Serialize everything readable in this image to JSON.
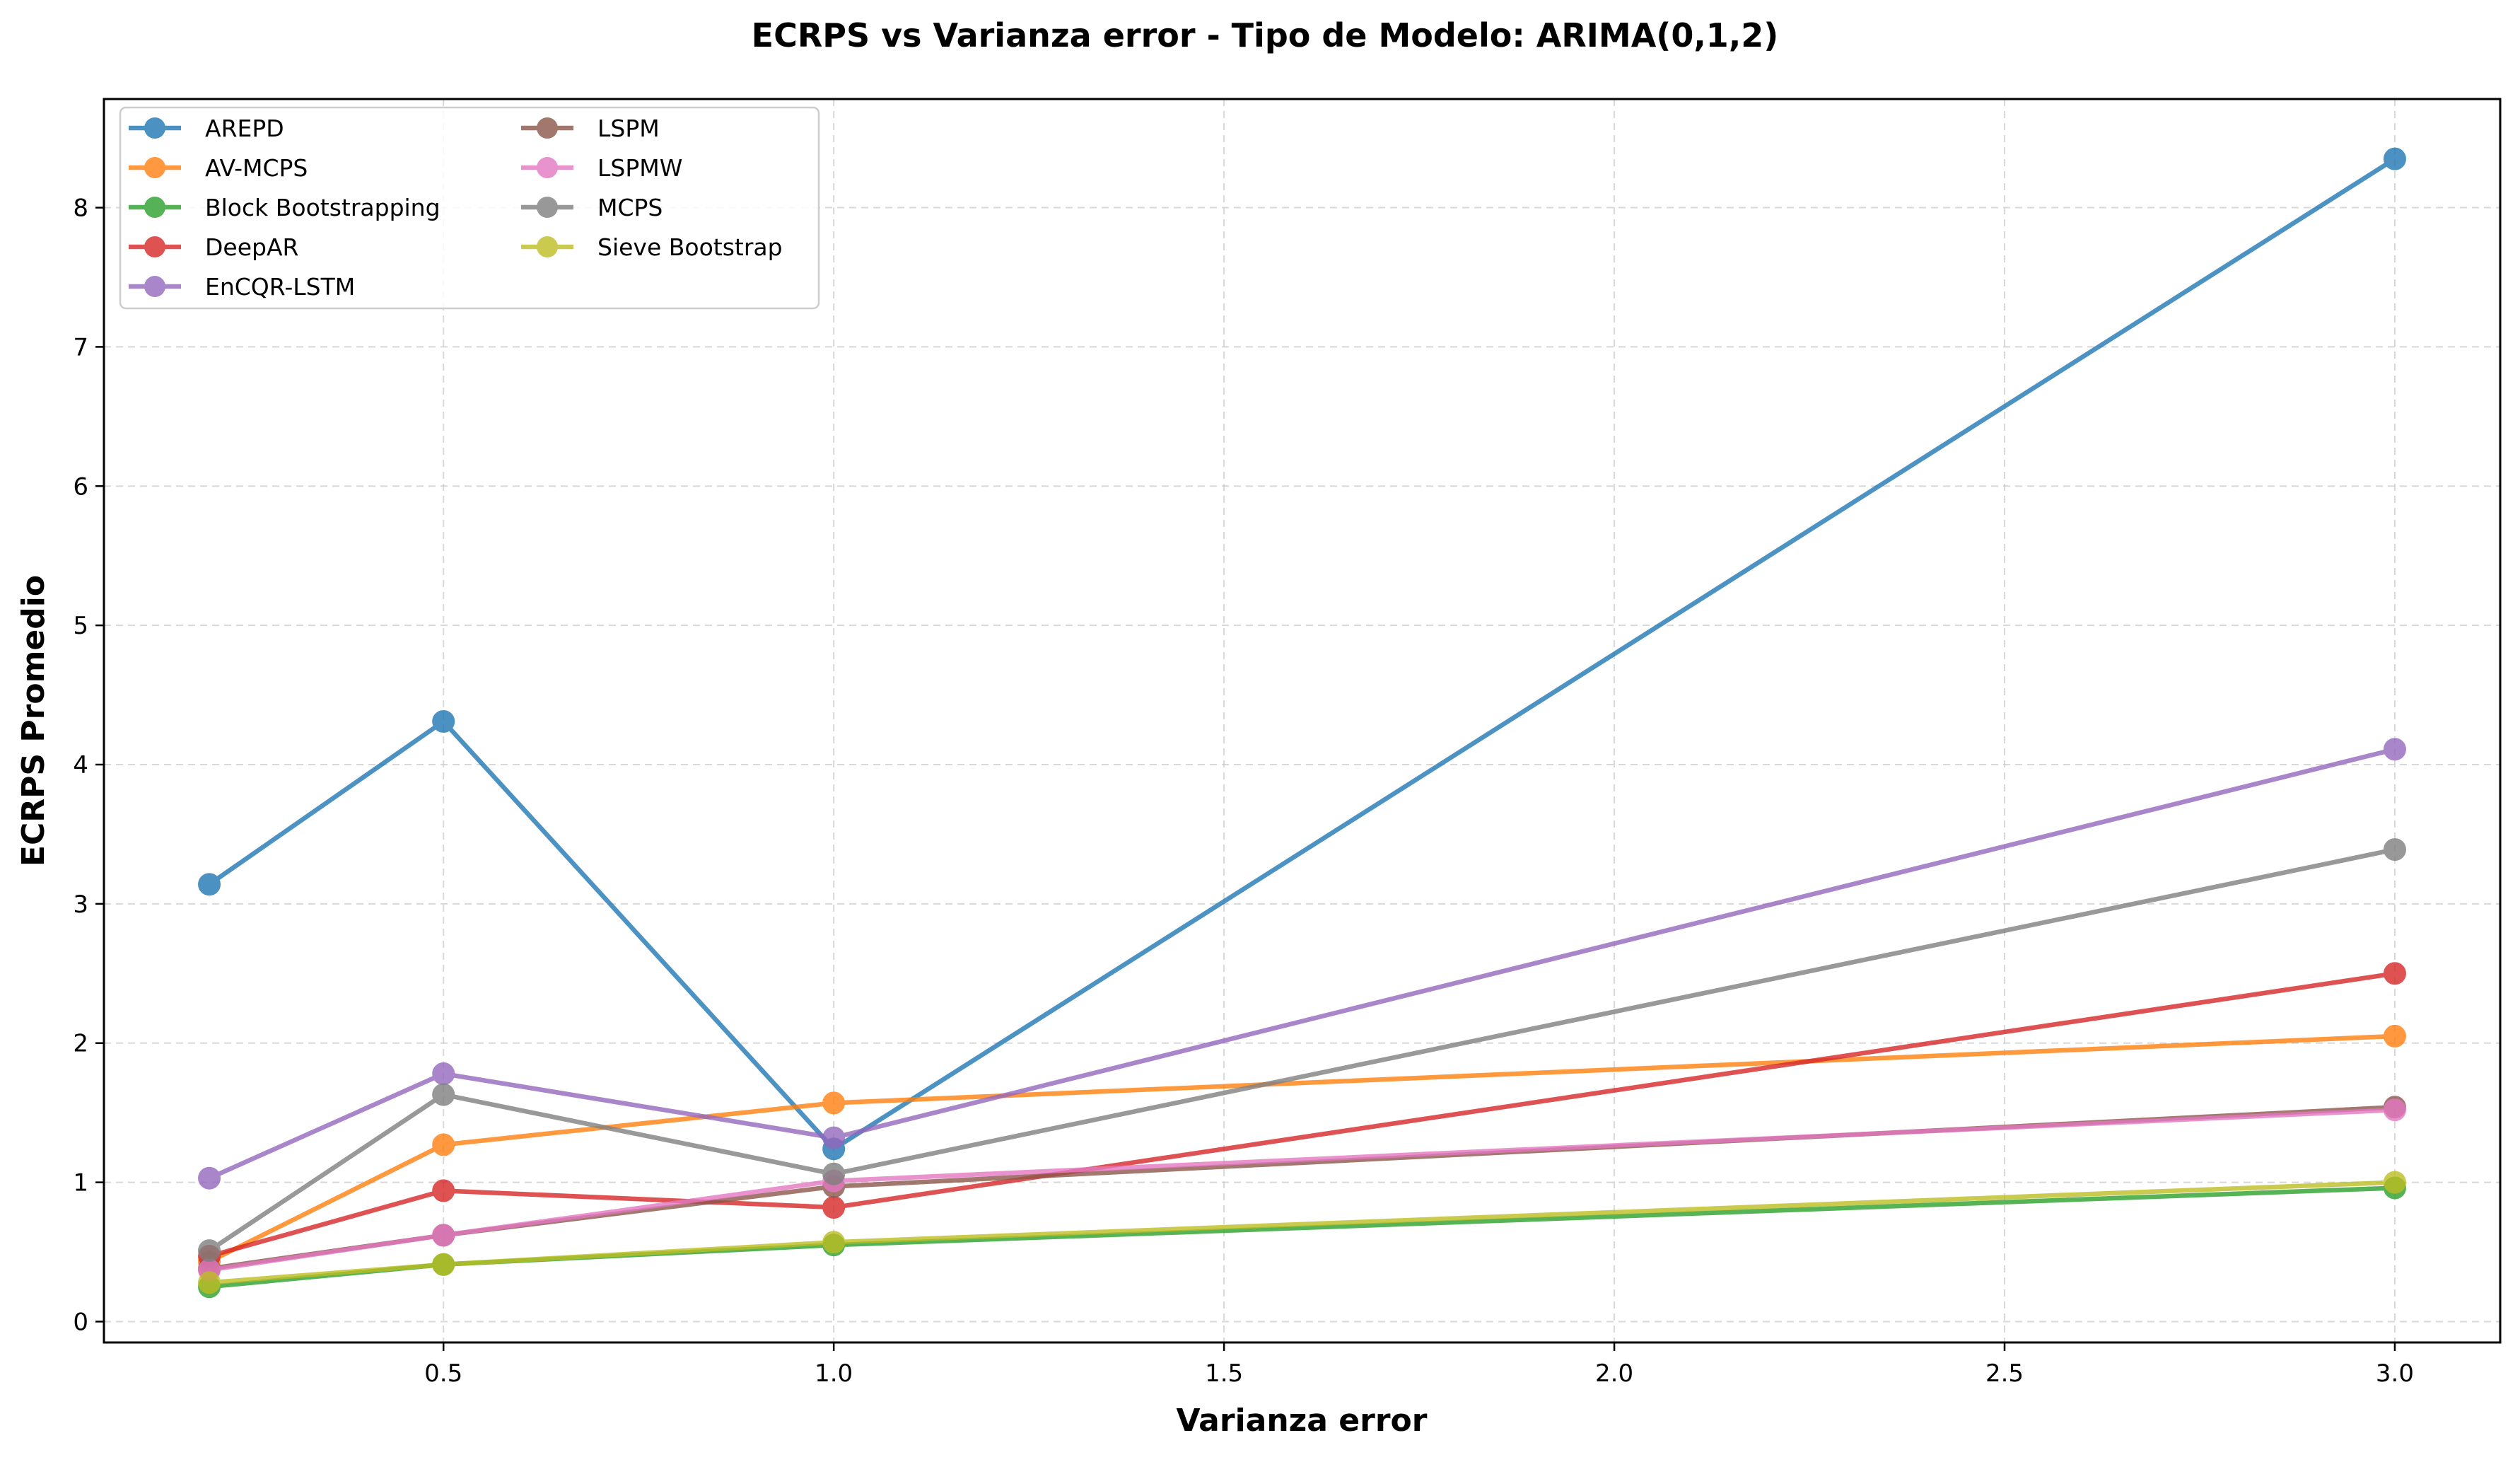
{
  "chart_data": {
    "type": "line",
    "title": "ECRPS vs Varianza error - Tipo de Modelo: ARIMA(0,1,2)",
    "xlabel": "Varianza error",
    "ylabel": "ECRPS Promedio",
    "x": [
      0.2,
      0.5,
      1.0,
      3.0
    ],
    "xlim": [
      0.065,
      3.135
    ],
    "ylim": [
      -0.15,
      8.78
    ],
    "xticks": [
      0.5,
      1.0,
      1.5,
      2.0,
      2.5,
      3.0
    ],
    "xtick_labels": [
      "0.5",
      "1.0",
      "1.5",
      "2.0",
      "2.5",
      "3.0"
    ],
    "yticks": [
      0,
      1,
      2,
      3,
      4,
      5,
      6,
      7,
      8
    ],
    "ytick_labels": [
      "0",
      "1",
      "2",
      "3",
      "4",
      "5",
      "6",
      "7",
      "8"
    ],
    "grid": true,
    "legend_position": "top-left",
    "series": [
      {
        "name": "AREPD",
        "color": "#1f77b4",
        "values": [
          3.14,
          4.31,
          1.24,
          8.35
        ]
      },
      {
        "name": "AV-MCPS",
        "color": "#ff7f0e",
        "values": [
          0.43,
          1.27,
          1.57,
          2.05
        ]
      },
      {
        "name": "Block Bootstrapping",
        "color": "#2ca02c",
        "values": [
          0.25,
          0.41,
          0.55,
          0.96
        ]
      },
      {
        "name": "DeepAR",
        "color": "#d62728",
        "values": [
          0.47,
          0.94,
          0.82,
          2.5
        ]
      },
      {
        "name": "EnCQR-LSTM",
        "color": "#9467bd",
        "values": [
          1.03,
          1.78,
          1.32,
          4.11
        ]
      },
      {
        "name": "LSPM",
        "color": "#8c564b",
        "values": [
          0.38,
          0.62,
          0.97,
          1.54
        ]
      },
      {
        "name": "LSPMW",
        "color": "#e377c2",
        "values": [
          0.37,
          0.62,
          1.01,
          1.52
        ]
      },
      {
        "name": "MCPS",
        "color": "#7f7f7f",
        "values": [
          0.51,
          1.63,
          1.06,
          3.39
        ]
      },
      {
        "name": "Sieve Bootstrap",
        "color": "#bcbd22",
        "values": [
          0.28,
          0.41,
          0.57,
          1.0
        ]
      }
    ]
  }
}
